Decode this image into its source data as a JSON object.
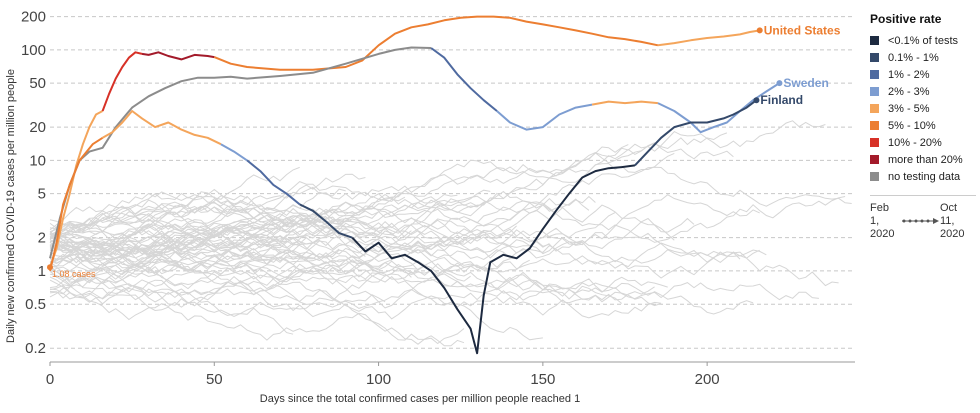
{
  "chart_data": {
    "type": "line",
    "ylabel": "Daily new confirmed COVID-19 cases per million people",
    "xlabel": "Days since the total confirmed cases per million people reached 1",
    "xlim": [
      0,
      245
    ],
    "ylim": [
      0.15,
      220
    ],
    "yscale": "log",
    "x_ticks": [
      0,
      50,
      100,
      150,
      200
    ],
    "y_ticks": [
      0.2,
      0.5,
      1,
      2,
      5,
      10,
      20,
      50,
      100,
      200
    ],
    "y_tick_labels": [
      "0.2",
      "0.5",
      "1",
      "2",
      "5",
      "10",
      "20",
      "50",
      "100",
      "200"
    ],
    "grid": "horizontal dashed",
    "annotation": "1.08 cases",
    "legend": {
      "title": "Positive rate",
      "placement": "right",
      "items": [
        {
          "label": "<0.1% of tests",
          "color": "#1d2a40"
        },
        {
          "label": "0.1% - 1%",
          "color": "#34496a"
        },
        {
          "label": "1% - 2%",
          "color": "#4f6aa0"
        },
        {
          "label": "2% - 3%",
          "color": "#7d9dd1"
        },
        {
          "label": "3% - 5%",
          "color": "#f4a55b"
        },
        {
          "label": "5% - 10%",
          "color": "#ec7e31"
        },
        {
          "label": "10% - 20%",
          "color": "#d73127"
        },
        {
          "label": "more than 20%",
          "color": "#a31a2a"
        },
        {
          "label": "no testing data",
          "color": "#8c8c8c"
        }
      ],
      "time_start": "Feb 1, 2020",
      "time_end": "Oct 11, 2020"
    },
    "series": [
      {
        "name": "United States",
        "label_color": "#ec7e31",
        "segments": [
          {
            "color": "#f4a55b",
            "points": [
              [
                0,
                1.08
              ],
              [
                2,
                1.6
              ],
              [
                4,
                3
              ],
              [
                6,
                5
              ],
              [
                8,
                9
              ],
              [
                10,
                14
              ],
              [
                12,
                20
              ],
              [
                14,
                26
              ],
              [
                16,
                28
              ]
            ]
          },
          {
            "color": "#d73127",
            "points": [
              [
                16,
                28
              ],
              [
                18,
                40
              ],
              [
                20,
                55
              ],
              [
                22,
                70
              ],
              [
                24,
                85
              ],
              [
                26,
                95
              ],
              [
                28,
                92
              ]
            ]
          },
          {
            "color": "#a31a2a",
            "points": [
              [
                28,
                92
              ],
              [
                30,
                90
              ],
              [
                33,
                95
              ],
              [
                36,
                88
              ],
              [
                40,
                82
              ],
              [
                44,
                90
              ],
              [
                48,
                88
              ],
              [
                50,
                86
              ]
            ]
          },
          {
            "color": "#ec7e31",
            "points": [
              [
                50,
                86
              ],
              [
                55,
                75
              ],
              [
                60,
                70
              ],
              [
                70,
                66
              ],
              [
                80,
                66
              ],
              [
                90,
                70
              ],
              [
                95,
                80
              ],
              [
                100,
                110
              ],
              [
                105,
                140
              ],
              [
                110,
                160
              ],
              [
                115,
                170
              ],
              [
                120,
                185
              ],
              [
                125,
                195
              ],
              [
                130,
                200
              ],
              [
                135,
                200
              ],
              [
                140,
                195
              ],
              [
                145,
                180
              ],
              [
                150,
                170
              ],
              [
                155,
                160
              ],
              [
                160,
                150
              ],
              [
                165,
                140
              ],
              [
                170,
                130
              ],
              [
                175,
                125
              ],
              [
                180,
                118
              ],
              [
                185,
                110
              ]
            ]
          },
          {
            "color": "#f4a55b",
            "points": [
              [
                185,
                110
              ],
              [
                190,
                115
              ],
              [
                195,
                122
              ],
              [
                200,
                128
              ],
              [
                205,
                132
              ],
              [
                210,
                138
              ],
              [
                213,
                145
              ],
              [
                216,
                150
              ]
            ]
          }
        ],
        "label_at": [
          216,
          150
        ]
      },
      {
        "name": "Sweden",
        "label_color": "#7d9dd1",
        "segments": [
          {
            "color": "#8c8c8c",
            "points": [
              [
                0,
                1.3
              ],
              [
                3,
                3
              ],
              [
                6,
                6
              ],
              [
                9,
                10
              ],
              [
                12,
                12
              ],
              [
                16,
                13
              ],
              [
                20,
                20
              ],
              [
                25,
                30
              ],
              [
                30,
                38
              ],
              [
                35,
                45
              ],
              [
                40,
                52
              ],
              [
                45,
                56
              ],
              [
                50,
                56
              ],
              [
                55,
                57
              ],
              [
                60,
                55
              ],
              [
                70,
                58
              ],
              [
                80,
                62
              ],
              [
                90,
                75
              ],
              [
                100,
                92
              ],
              [
                105,
                100
              ],
              [
                110,
                105
              ],
              [
                116,
                104
              ]
            ]
          },
          {
            "color": "#4f6aa0",
            "points": [
              [
                116,
                104
              ],
              [
                120,
                85
              ],
              [
                124,
                60
              ],
              [
                128,
                45
              ],
              [
                132,
                35
              ],
              [
                136,
                28
              ]
            ]
          },
          {
            "color": "#7d9dd1",
            "points": [
              [
                136,
                28
              ],
              [
                140,
                22
              ],
              [
                145,
                19
              ],
              [
                150,
                20
              ],
              [
                155,
                26
              ],
              [
                160,
                30
              ],
              [
                165,
                32
              ]
            ]
          },
          {
            "color": "#f4a55b",
            "points": [
              [
                165,
                32
              ],
              [
                170,
                34
              ],
              [
                175,
                33
              ],
              [
                180,
                34
              ],
              [
                185,
                33
              ]
            ]
          },
          {
            "color": "#7d9dd1",
            "points": [
              [
                185,
                33
              ],
              [
                190,
                28
              ],
              [
                195,
                22
              ],
              [
                198,
                18
              ],
              [
                202,
                20
              ],
              [
                206,
                22
              ],
              [
                210,
                28
              ],
              [
                214,
                35
              ],
              [
                218,
                42
              ],
              [
                222,
                50
              ]
            ]
          }
        ],
        "label_at": [
          222,
          50
        ]
      },
      {
        "name": "Finland",
        "label_color": "#34496a",
        "segments": [
          {
            "color": "#ec7e31",
            "points": [
              [
                0,
                1.0
              ],
              [
                2,
                1.8
              ],
              [
                4,
                4
              ],
              [
                6,
                6
              ],
              [
                9,
                10
              ],
              [
                13,
                14
              ],
              [
                16,
                16
              ]
            ]
          },
          {
            "color": "#f4a55b",
            "points": [
              [
                16,
                16
              ],
              [
                19,
                18
              ],
              [
                22,
                22
              ],
              [
                25,
                28
              ],
              [
                28,
                24
              ],
              [
                32,
                20
              ],
              [
                36,
                22
              ],
              [
                40,
                19
              ],
              [
                44,
                17
              ],
              [
                48,
                16
              ],
              [
                52,
                14
              ]
            ]
          },
          {
            "color": "#7d9dd1",
            "points": [
              [
                52,
                14
              ],
              [
                56,
                12
              ],
              [
                60,
                10
              ]
            ]
          },
          {
            "color": "#4f6aa0",
            "points": [
              [
                60,
                10
              ],
              [
                64,
                8
              ],
              [
                68,
                6
              ],
              [
                72,
                5
              ],
              [
                76,
                4
              ]
            ]
          },
          {
            "color": "#34496a",
            "points": [
              [
                76,
                4
              ],
              [
                80,
                3.5
              ],
              [
                84,
                2.8
              ],
              [
                88,
                2.2
              ],
              [
                92,
                2.0
              ]
            ]
          },
          {
            "color": "#1d2a40",
            "points": [
              [
                92,
                2.0
              ],
              [
                96,
                1.5
              ],
              [
                100,
                1.8
              ],
              [
                104,
                1.3
              ],
              [
                108,
                1.4
              ],
              [
                112,
                1.2
              ],
              [
                116,
                1.0
              ],
              [
                120,
                0.7
              ],
              [
                124,
                0.45
              ],
              [
                128,
                0.3
              ],
              [
                130,
                0.18
              ],
              [
                132,
                0.6
              ],
              [
                134,
                1.2
              ],
              [
                138,
                1.4
              ],
              [
                142,
                1.3
              ],
              [
                146,
                1.6
              ],
              [
                150,
                2.4
              ],
              [
                154,
                3.5
              ],
              [
                158,
                5
              ],
              [
                162,
                7
              ],
              [
                166,
                8
              ],
              [
                170,
                8.5
              ],
              [
                174,
                8.7
              ],
              [
                178,
                9
              ]
            ]
          },
          {
            "color": "#34496a",
            "points": [
              [
                178,
                9
              ],
              [
                182,
                12
              ],
              [
                186,
                16
              ],
              [
                190,
                20
              ],
              [
                195,
                22
              ],
              [
                200,
                22
              ],
              [
                205,
                24
              ],
              [
                208,
                26
              ],
              [
                212,
                30
              ],
              [
                215,
                35
              ]
            ]
          }
        ],
        "label_at": [
          215,
          35
        ]
      }
    ],
    "background_series_count": 60
  }
}
